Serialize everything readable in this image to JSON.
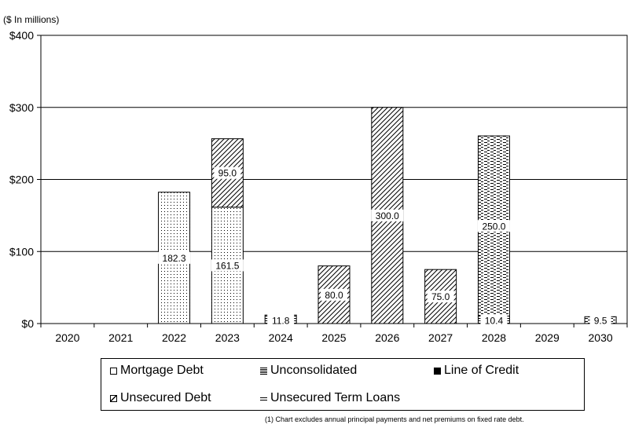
{
  "unit_label": "($ In millions)",
  "footnote": "(1) Chart excludes annual principal payments and net premiums on fixed rate debt.",
  "chart_data": {
    "type": "bar",
    "stacked": true,
    "categories": [
      "2020",
      "2021",
      "2022",
      "2023",
      "2024",
      "2025",
      "2026",
      "2027",
      "2028",
      "2029",
      "2030"
    ],
    "ylim": [
      0,
      400
    ],
    "yticks": [
      0,
      100,
      200,
      300,
      400
    ],
    "ytick_labels": [
      "$0",
      "$100",
      "$200",
      "$300",
      "$400"
    ],
    "grid": true,
    "legend_position": "bottom",
    "series": [
      {
        "name": "Mortgage Debt",
        "pattern": "dots",
        "values": [
          0,
          0,
          182.3,
          161.5,
          0,
          0,
          0,
          0,
          0,
          0,
          0
        ],
        "labels": [
          "",
          "",
          "182.3",
          "161.5",
          "",
          "",
          "",
          "",
          "",
          "",
          ""
        ]
      },
      {
        "name": "Unconsolidated",
        "pattern": "hlines",
        "values": [
          0,
          0,
          0,
          0,
          11.8,
          0,
          0,
          0,
          10.4,
          0,
          0
        ],
        "labels": [
          "",
          "",
          "",
          "",
          "11.8",
          "",
          "",
          "",
          "10.4",
          "",
          ""
        ]
      },
      {
        "name": "Line of Credit",
        "pattern": "dense",
        "values": [
          0,
          0,
          0,
          0,
          0,
          0,
          0,
          0,
          0,
          0,
          0
        ],
        "labels": [
          "",
          "",
          "",
          "",
          "",
          "",
          "",
          "",
          "",
          "",
          ""
        ]
      },
      {
        "name": "Unsecured Debt",
        "pattern": "diagonal",
        "values": [
          0,
          0,
          0,
          95.0,
          0,
          80.0,
          300.0,
          75.0,
          0,
          0,
          0
        ],
        "labels": [
          "",
          "",
          "",
          "95.0",
          "",
          "80.0",
          "300.0",
          "75.0",
          "",
          "",
          ""
        ]
      },
      {
        "name": "Unsecured Term Loans",
        "pattern": "dashes",
        "values": [
          0,
          0,
          0,
          0,
          0,
          0,
          0,
          0,
          250.0,
          0,
          9.5
        ],
        "labels": [
          "",
          "",
          "",
          "",
          "",
          "",
          "",
          "",
          "250.0",
          "",
          "9.5"
        ]
      }
    ]
  }
}
